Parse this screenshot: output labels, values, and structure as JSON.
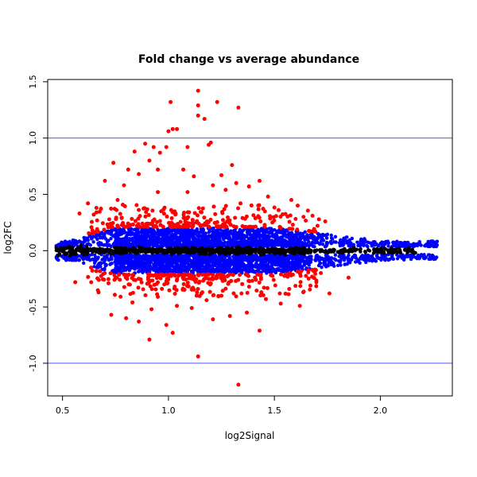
{
  "chart_data": {
    "type": "scatter",
    "title": "Fold change vs average abundance",
    "xlabel": "log2Signal",
    "ylabel": "log2FC",
    "xlim": [
      0.43,
      2.34
    ],
    "ylim": [
      -1.29,
      1.52
    ],
    "x_ticks": [
      0.5,
      1.0,
      1.5,
      2.0
    ],
    "x_tick_labels": [
      "0.5",
      "1.0",
      "1.5",
      "2.0"
    ],
    "y_ticks": [
      -1.0,
      -0.5,
      0.0,
      0.5,
      1.0,
      1.5
    ],
    "y_tick_labels": [
      "-1.0",
      "-0.5",
      "0.0",
      "0.5",
      "1.0",
      "1.5"
    ],
    "grid": false,
    "hlines": [
      {
        "y": 1.0,
        "color": "#5555ee"
      },
      {
        "y": -1.0,
        "color": "#5555ee"
      }
    ],
    "series_colors": {
      "non_significant": "#000000",
      "moderate": "#0000ff",
      "significant": "#ff0000"
    },
    "series": [
      {
        "color": "#ff0000",
        "points": [
          [
            1.14,
            1.42
          ],
          [
            1.01,
            1.32
          ],
          [
            1.23,
            1.32
          ],
          [
            1.33,
            1.27
          ],
          [
            1.14,
            1.29
          ],
          [
            1.14,
            1.2
          ],
          [
            1.17,
            1.17
          ],
          [
            1.04,
            1.08
          ],
          [
            1.02,
            1.08
          ],
          [
            1.0,
            1.06
          ],
          [
            1.2,
            0.96
          ],
          [
            0.89,
            0.95
          ],
          [
            0.93,
            0.92
          ],
          [
            0.99,
            0.92
          ],
          [
            1.09,
            0.92
          ],
          [
            1.19,
            0.94
          ],
          [
            0.96,
            0.87
          ],
          [
            0.84,
            0.88
          ],
          [
            1.3,
            0.76
          ],
          [
            0.74,
            0.78
          ],
          [
            0.91,
            0.8
          ],
          [
            0.95,
            0.72
          ],
          [
            0.81,
            0.72
          ],
          [
            0.86,
            0.68
          ],
          [
            1.07,
            0.72
          ],
          [
            1.12,
            0.66
          ],
          [
            1.25,
            0.67
          ],
          [
            1.43,
            0.62
          ],
          [
            0.7,
            0.62
          ],
          [
            0.79,
            0.58
          ],
          [
            1.21,
            0.58
          ],
          [
            1.32,
            0.6
          ],
          [
            1.38,
            0.57
          ],
          [
            1.27,
            0.54
          ],
          [
            0.95,
            0.52
          ],
          [
            1.09,
            0.52
          ],
          [
            1.47,
            0.48
          ],
          [
            1.58,
            0.45
          ],
          [
            0.76,
            0.45
          ],
          [
            0.62,
            0.42
          ],
          [
            1.34,
            0.42
          ],
          [
            1.61,
            0.4
          ],
          [
            1.68,
            0.31
          ],
          [
            1.74,
            0.26
          ],
          [
            0.58,
            0.33
          ],
          [
            0.66,
            0.38
          ],
          [
            1.52,
            0.36
          ],
          [
            1.33,
            -1.19
          ],
          [
            1.14,
            -0.94
          ],
          [
            0.91,
            -0.79
          ],
          [
            1.02,
            -0.73
          ],
          [
            1.43,
            -0.71
          ],
          [
            0.99,
            -0.66
          ],
          [
            0.86,
            -0.63
          ],
          [
            1.21,
            -0.61
          ],
          [
            0.8,
            -0.6
          ],
          [
            1.29,
            -0.58
          ],
          [
            0.73,
            -0.57
          ],
          [
            1.37,
            -0.55
          ],
          [
            0.92,
            -0.52
          ],
          [
            1.11,
            -0.51
          ],
          [
            1.04,
            -0.49
          ],
          [
            1.62,
            -0.49
          ],
          [
            1.53,
            -0.47
          ],
          [
            0.83,
            -0.46
          ],
          [
            1.18,
            -0.44
          ],
          [
            1.46,
            -0.43
          ],
          [
            0.95,
            -0.41
          ],
          [
            1.25,
            -0.4
          ],
          [
            1.76,
            -0.38
          ],
          [
            0.67,
            -0.37
          ],
          [
            1.57,
            -0.34
          ],
          [
            1.67,
            -0.31
          ],
          [
            0.56,
            -0.28
          ],
          [
            1.85,
            -0.24
          ]
        ]
      }
    ]
  }
}
